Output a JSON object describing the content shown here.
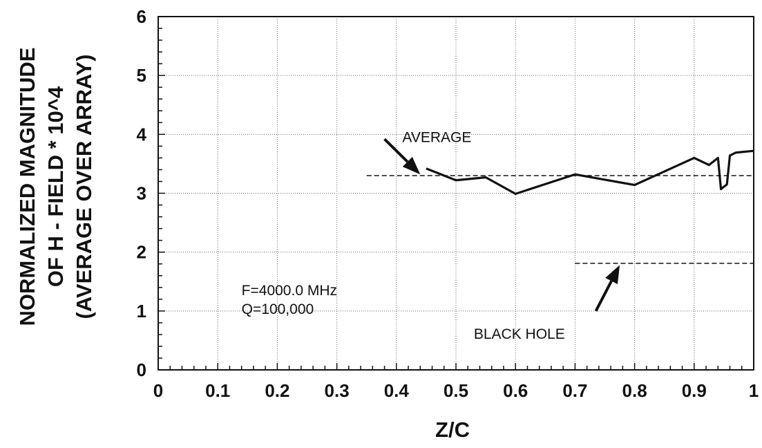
{
  "chart_data": {
    "type": "line",
    "xlabel": "Z/C",
    "ylabel_lines": [
      "NORMALIZED MAGNITUDE",
      "OF H - FIELD * 10^4",
      "(AVERAGE OVER ARRAY)"
    ],
    "xlim": [
      0,
      1
    ],
    "ylim": [
      0,
      6
    ],
    "x_ticks": [
      0,
      0.1,
      0.2,
      0.3,
      0.4,
      0.5,
      0.6,
      0.7,
      0.8,
      0.9,
      1
    ],
    "x_tick_labels": [
      "0",
      "0.1",
      "0.2",
      "0.3",
      "0.4",
      "0.5",
      "0.6",
      "0.7",
      "0.8",
      "0.9",
      "1"
    ],
    "y_ticks": [
      0,
      1,
      2,
      3,
      4,
      5,
      6
    ],
    "y_tick_labels": [
      "0",
      "1",
      "2",
      "3",
      "4",
      "5",
      "6"
    ],
    "grid": true,
    "series": [
      {
        "style": "solid",
        "x": [
          0.45,
          0.5,
          0.55,
          0.6,
          0.7,
          0.8,
          0.9,
          0.925,
          0.94,
          0.945,
          0.955,
          0.96,
          0.97,
          0.98,
          1.0
        ],
        "y": [
          3.42,
          3.22,
          3.27,
          2.99,
          3.32,
          3.14,
          3.6,
          3.48,
          3.6,
          3.07,
          3.15,
          3.64,
          3.69,
          3.7,
          3.72
        ]
      },
      {
        "style": "dashed",
        "x": [
          0.35,
          1.0
        ],
        "y": [
          3.3,
          3.3
        ]
      },
      {
        "style": "dashed",
        "x": [
          0.7,
          1.0
        ],
        "y": [
          1.81,
          1.81
        ]
      }
    ],
    "annotations": [
      {
        "text": "AVERAGE",
        "x": 0.41,
        "y": 3.87
      },
      {
        "text": "BLACK HOLE",
        "x": 0.53,
        "y": 0.53
      },
      {
        "text": "F=4000.0 MHz",
        "x": 0.14,
        "y": 1.27
      },
      {
        "text": "Q=100,000",
        "x": 0.14,
        "y": 0.95
      }
    ],
    "arrows": [
      {
        "from": [
          0.38,
          3.92
        ],
        "to": [
          0.44,
          3.32
        ]
      },
      {
        "from": [
          0.735,
          1.0
        ],
        "to": [
          0.775,
          1.78
        ]
      }
    ]
  }
}
